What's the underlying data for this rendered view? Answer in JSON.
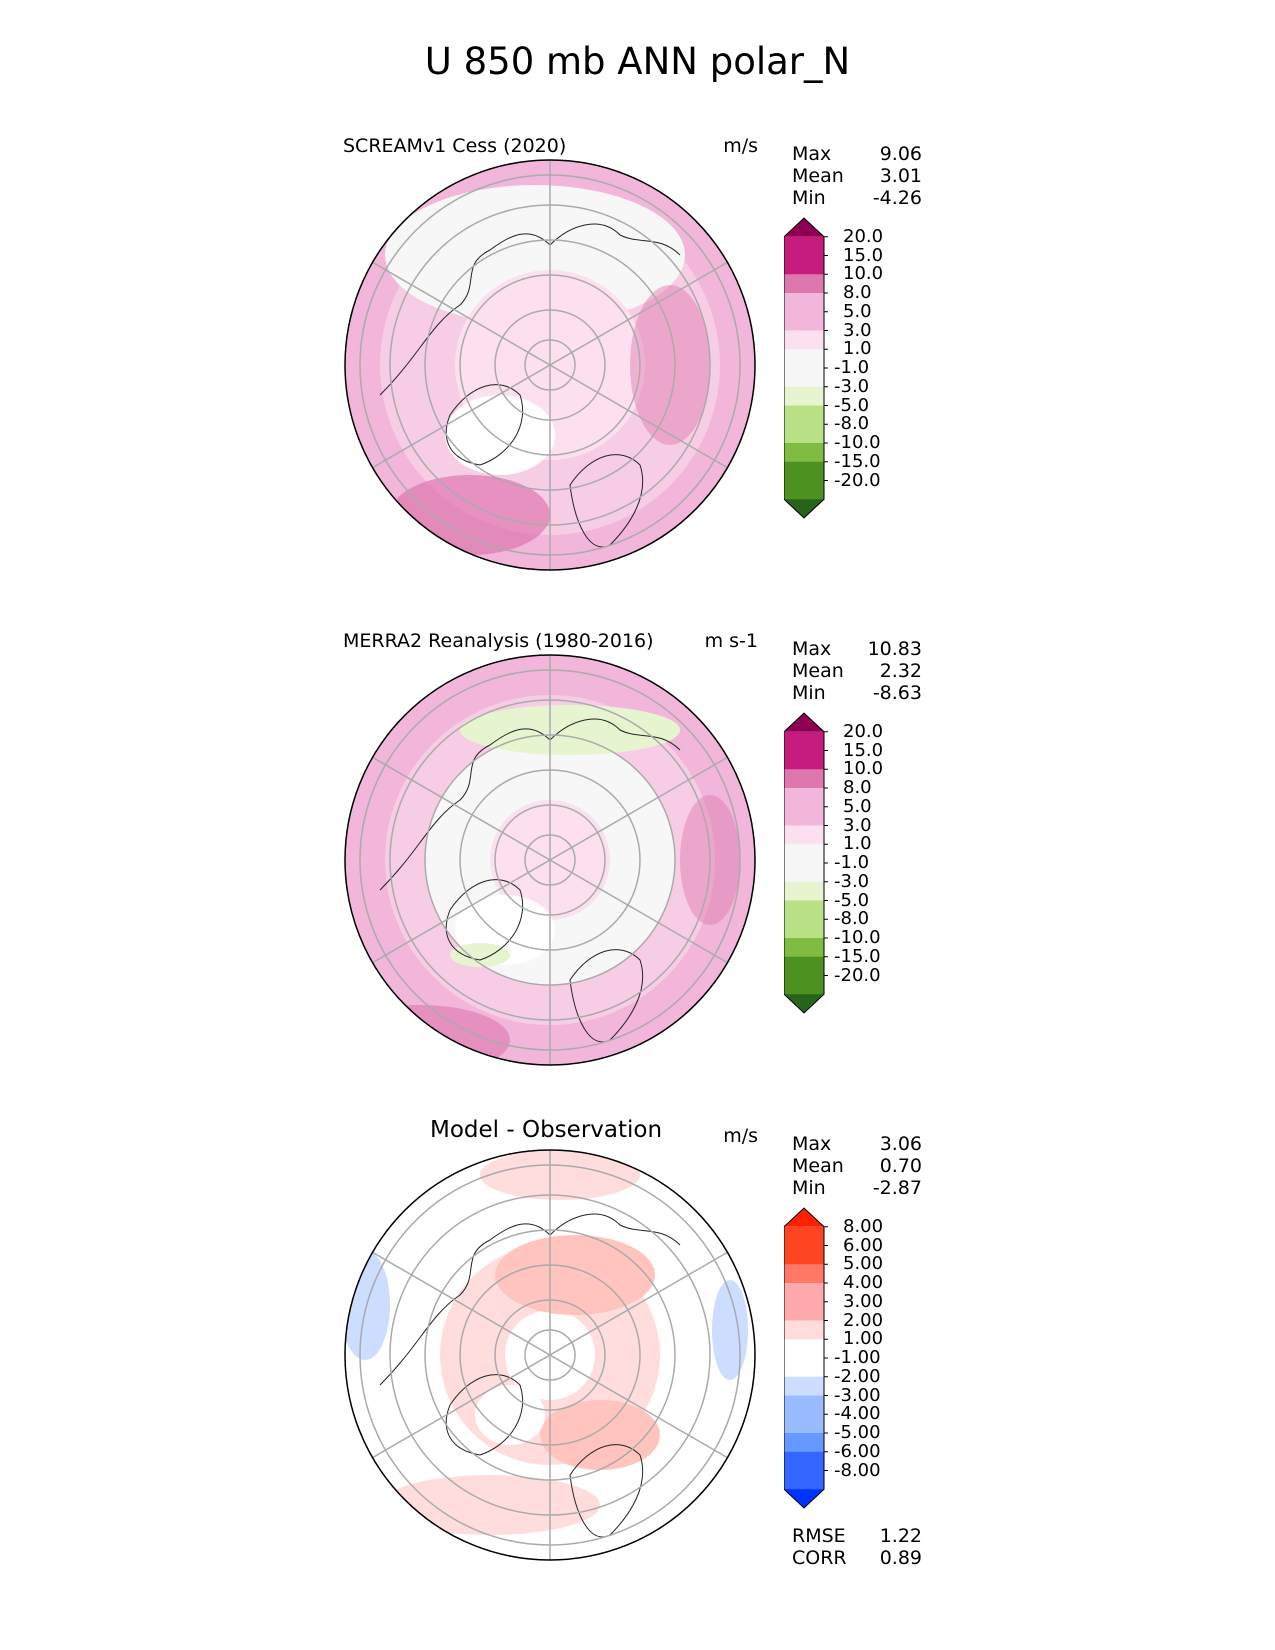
{
  "figure_title": "U 850 mb ANN polar_N",
  "colors": {
    "pink_levels": [
      "#276419",
      "#4d9221",
      "#7fbc41",
      "#b8e186",
      "#e6f5d0",
      "#f7f7f7",
      "#fde0ef",
      "#f1b6da",
      "#de77ae",
      "#c51b7d",
      "#8e0152"
    ],
    "diff_levels": [
      "#0033ff",
      "#3366ff",
      "#6699ff",
      "#99bbff",
      "#ccddff",
      "#ffffff",
      "#ffdddd",
      "#ffaaaa",
      "#ff7766",
      "#ff4422",
      "#ff2200"
    ]
  },
  "chart_data": [
    {
      "type": "heatmap",
      "projection": "north-polar-stereographic",
      "title": "SCREAMv1 Cess (2020)",
      "units": "m/s",
      "stats": {
        "max_label": "Max",
        "max": "9.06",
        "mean_label": "Mean",
        "mean": "3.01",
        "min_label": "Min",
        "min": "-4.26"
      },
      "colorbar": {
        "levels": [
          "20.0",
          "15.0",
          "10.0",
          "8.0",
          "5.0",
          "3.0",
          "1.0",
          "-1.0",
          "-3.0",
          "-5.0",
          "-8.0",
          "-10.0",
          "-15.0",
          "-20.0"
        ],
        "extend": "both"
      }
    },
    {
      "type": "heatmap",
      "projection": "north-polar-stereographic",
      "title": "MERRA2 Reanalysis (1980-2016)",
      "units": "m s-1",
      "stats": {
        "max_label": "Max",
        "max": "10.83",
        "mean_label": "Mean",
        "mean": "2.32",
        "min_label": "Min",
        "min": "-8.63"
      },
      "colorbar": {
        "levels": [
          "20.0",
          "15.0",
          "10.0",
          "8.0",
          "5.0",
          "3.0",
          "1.0",
          "-1.0",
          "-3.0",
          "-5.0",
          "-8.0",
          "-10.0",
          "-15.0",
          "-20.0"
        ],
        "extend": "both"
      }
    },
    {
      "type": "heatmap",
      "projection": "north-polar-stereographic",
      "title": "Model - Observation",
      "units": "m/s",
      "stats": {
        "max_label": "Max",
        "max": "3.06",
        "mean_label": "Mean",
        "mean": "0.70",
        "min_label": "Min",
        "min": "-2.87"
      },
      "colorbar": {
        "levels": [
          "8.00",
          "6.00",
          "5.00",
          "4.00",
          "3.00",
          "2.00",
          "1.00",
          "-1.00",
          "-2.00",
          "-3.00",
          "-4.00",
          "-5.00",
          "-6.00",
          "-8.00"
        ],
        "extend": "both"
      },
      "metrics": {
        "rmse_label": "RMSE",
        "rmse": "1.22",
        "corr_label": "CORR",
        "corr": "0.89"
      }
    }
  ]
}
